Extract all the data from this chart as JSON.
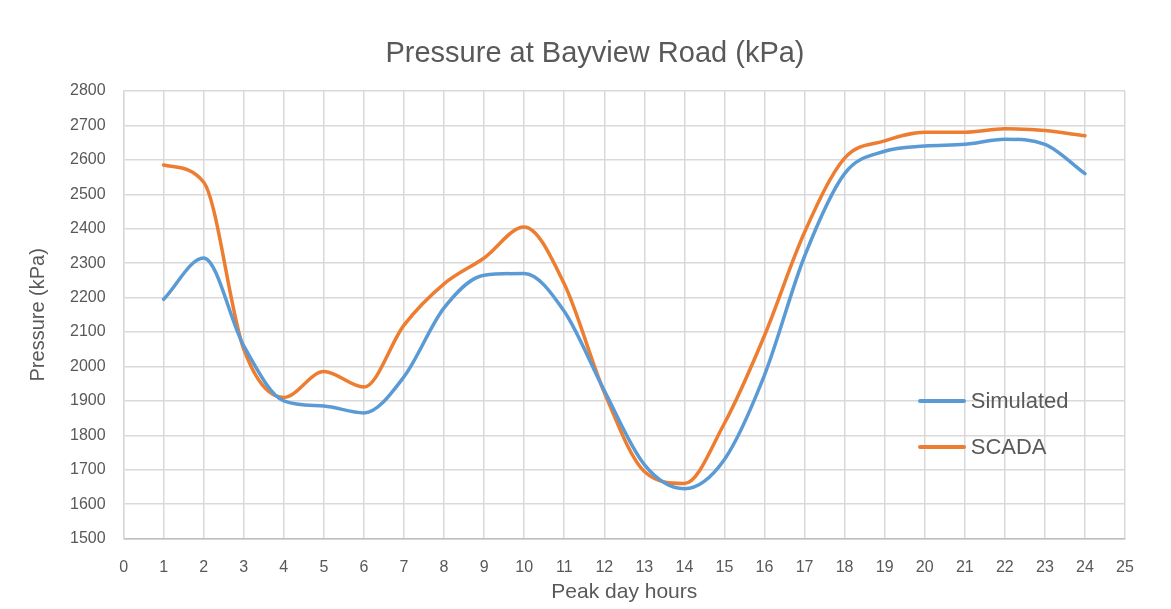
{
  "chart_data": {
    "type": "line",
    "title": "Pressure at Bayview Road (kPa)",
    "xlabel": "Peak day hours",
    "ylabel": "Pressure (kPa)",
    "x": [
      1,
      2,
      3,
      4,
      5,
      6,
      7,
      8,
      9,
      10,
      11,
      12,
      13,
      14,
      15,
      16,
      17,
      18,
      19,
      20,
      21,
      22,
      23,
      24
    ],
    "series": [
      {
        "name": "Simulated",
        "color": "#5b9bd5",
        "values": [
          2195,
          2315,
          2060,
          1900,
          1885,
          1865,
          1970,
          2170,
          2265,
          2270,
          2160,
          1930,
          1715,
          1645,
          1730,
          1975,
          2320,
          2560,
          2625,
          2640,
          2645,
          2660,
          2645,
          2560
        ]
      },
      {
        "name": "SCADA",
        "color": "#ed7d31",
        "values": [
          2585,
          2535,
          2050,
          1910,
          1985,
          1940,
          2120,
          2240,
          2315,
          2405,
          2240,
          1925,
          1695,
          1660,
          1835,
          2090,
          2390,
          2605,
          2655,
          2680,
          2680,
          2690,
          2685,
          2670
        ]
      }
    ],
    "xlim": [
      0,
      25
    ],
    "xticks": [
      0,
      1,
      2,
      3,
      4,
      5,
      6,
      7,
      8,
      9,
      10,
      11,
      12,
      13,
      14,
      15,
      16,
      17,
      18,
      19,
      20,
      21,
      22,
      23,
      24,
      25
    ],
    "ylim": [
      1500,
      2800
    ],
    "yticks": [
      1500,
      1600,
      1700,
      1800,
      1900,
      2000,
      2100,
      2200,
      2300,
      2400,
      2500,
      2600,
      2700,
      2800
    ],
    "grid": true,
    "legend": "right"
  }
}
